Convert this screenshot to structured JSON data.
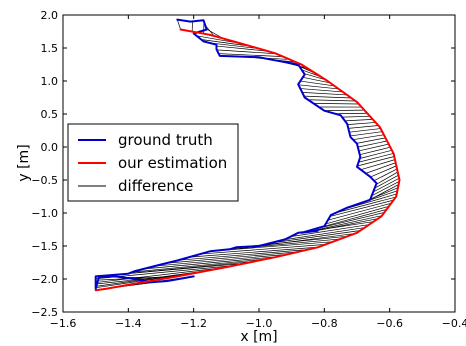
{
  "chart_data": {
    "type": "line",
    "title": "",
    "xlabel": "x [m]",
    "ylabel": "y [m]",
    "xlim": [
      -1.6,
      -0.4
    ],
    "ylim": [
      -2.5,
      2.0
    ],
    "xticks": [
      -1.6,
      -1.4,
      -1.2,
      -1.0,
      -0.8,
      -0.6,
      -0.4
    ],
    "yticks": [
      -2.5,
      -2.0,
      -1.5,
      -1.0,
      -0.5,
      0.0,
      0.5,
      1.0,
      1.5,
      2.0
    ],
    "xtick_labels": [
      "−1.6",
      "−1.4",
      "−1.2",
      "−1.0",
      "−0.8",
      "−0.6",
      "−0.4"
    ],
    "ytick_labels": [
      "−2.5",
      "−2.0",
      "−1.5",
      "−1.0",
      "−0.5",
      "0.0",
      "0.5",
      "1.0",
      "1.5",
      "2.0"
    ],
    "grid": false,
    "legend_position": "center-left",
    "series": [
      {
        "name": "ground truth",
        "color": "#0000cc",
        "points": [
          [
            -1.25,
            1.93
          ],
          [
            -1.21,
            1.9
          ],
          [
            -1.17,
            1.92
          ],
          [
            -1.16,
            1.78
          ],
          [
            -1.2,
            1.72
          ],
          [
            -1.17,
            1.6
          ],
          [
            -1.13,
            1.55
          ],
          [
            -1.13,
            1.48
          ],
          [
            -1.12,
            1.38
          ],
          [
            -1.0,
            1.36
          ],
          [
            -0.97,
            1.33
          ],
          [
            -0.88,
            1.25
          ],
          [
            -0.86,
            1.1
          ],
          [
            -0.88,
            0.95
          ],
          [
            -0.86,
            0.75
          ],
          [
            -0.8,
            0.55
          ],
          [
            -0.75,
            0.48
          ],
          [
            -0.73,
            0.35
          ],
          [
            -0.72,
            0.15
          ],
          [
            -0.7,
            0.05
          ],
          [
            -0.69,
            -0.15
          ],
          [
            -0.7,
            -0.3
          ],
          [
            -0.66,
            -0.45
          ],
          [
            -0.64,
            -0.55
          ],
          [
            -0.66,
            -0.8
          ],
          [
            -0.73,
            -0.92
          ],
          [
            -0.78,
            -1.03
          ],
          [
            -0.8,
            -1.2
          ],
          [
            -0.87,
            -1.3
          ],
          [
            -0.82,
            -1.27
          ],
          [
            -0.88,
            -1.3
          ],
          [
            -0.92,
            -1.4
          ],
          [
            -1.0,
            -1.5
          ],
          [
            -1.07,
            -1.52
          ],
          [
            -1.09,
            -1.55
          ],
          [
            -1.15,
            -1.58
          ],
          [
            -1.25,
            -1.72
          ],
          [
            -1.3,
            -1.78
          ],
          [
            -1.38,
            -1.88
          ],
          [
            -1.4,
            -1.92
          ],
          [
            -1.5,
            -1.96
          ],
          [
            -1.5,
            -2.15
          ],
          [
            -1.49,
            -1.97
          ],
          [
            -1.44,
            -1.96
          ],
          [
            -1.38,
            -2.0
          ],
          [
            -1.33,
            -2.05
          ],
          [
            -1.28,
            -2.03
          ],
          [
            -1.2,
            -1.96
          ]
        ]
      },
      {
        "name": "our estimation",
        "color": "#ff0000",
        "points": [
          [
            -1.24,
            1.78
          ],
          [
            -1.15,
            1.7
          ],
          [
            -1.05,
            1.56
          ],
          [
            -0.95,
            1.42
          ],
          [
            -0.87,
            1.25
          ],
          [
            -0.79,
            1.0
          ],
          [
            -0.7,
            0.68
          ],
          [
            -0.63,
            0.3
          ],
          [
            -0.588,
            -0.1
          ],
          [
            -0.57,
            -0.5
          ],
          [
            -0.58,
            -0.75
          ],
          [
            -0.625,
            -1.05
          ],
          [
            -0.7,
            -1.3
          ],
          [
            -0.82,
            -1.52
          ],
          [
            -0.95,
            -1.67
          ],
          [
            -1.1,
            -1.82
          ],
          [
            -1.25,
            -1.96
          ],
          [
            -1.38,
            -2.07
          ],
          [
            -1.47,
            -2.15
          ],
          [
            -1.5,
            -2.17
          ]
        ]
      },
      {
        "name": "difference",
        "color": "#000000"
      }
    ]
  }
}
